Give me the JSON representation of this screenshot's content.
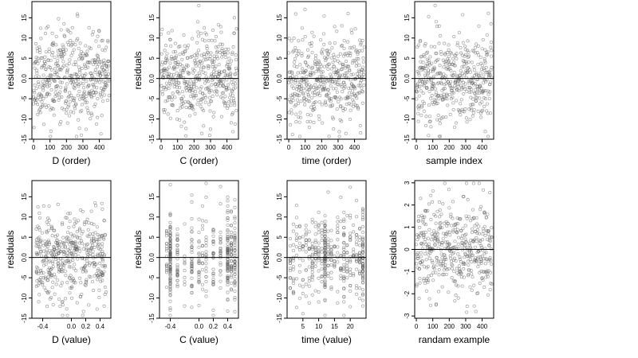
{
  "chart_data": [
    {
      "type": "scatter",
      "xlabel": "D (order)",
      "ylabel": "residuals",
      "xlim": [
        -10,
        470
      ],
      "ylim": [
        -15,
        19
      ],
      "xticks": [
        0,
        100,
        200,
        300,
        400
      ],
      "xtick_labels": [
        "0",
        "100",
        "200",
        "300",
        "400"
      ],
      "yticks": [
        -15,
        -10,
        -5,
        0,
        5,
        10,
        15
      ],
      "ytick_labels": [
        "-15",
        "-10",
        "-5",
        "0.0",
        "5",
        "10",
        "15"
      ],
      "hline": 0,
      "n_points": 460,
      "seed": 11,
      "x_kind": "index",
      "y_scale": 5.5,
      "grid": false
    },
    {
      "type": "scatter",
      "xlabel": "C (order)",
      "ylabel": "residuals",
      "xlim": [
        -10,
        470
      ],
      "ylim": [
        -15,
        19
      ],
      "xticks": [
        0,
        100,
        200,
        300,
        400
      ],
      "xtick_labels": [
        "0",
        "100",
        "200",
        "300",
        "400"
      ],
      "yticks": [
        -15,
        -10,
        -5,
        0,
        5,
        10,
        15
      ],
      "ytick_labels": [
        "-15",
        "-10",
        "-5",
        "0.0",
        "5",
        "10",
        "15"
      ],
      "hline": 0,
      "n_points": 460,
      "seed": 23,
      "x_kind": "index",
      "y_scale": 5.5,
      "grid": false
    },
    {
      "type": "scatter",
      "xlabel": "time (order)",
      "ylabel": "residuals",
      "xlim": [
        -10,
        470
      ],
      "ylim": [
        -15,
        19
      ],
      "xticks": [
        0,
        100,
        200,
        300,
        400
      ],
      "xtick_labels": [
        "0",
        "100",
        "200",
        "300",
        "400"
      ],
      "yticks": [
        -15,
        -10,
        -5,
        0,
        5,
        10,
        15
      ],
      "ytick_labels": [
        "-15",
        "-10",
        "-5",
        "0.0",
        "5",
        "10",
        "15"
      ],
      "hline": 0,
      "n_points": 460,
      "seed": 37,
      "x_kind": "index",
      "y_scale": 5.5,
      "grid": false
    },
    {
      "type": "scatter",
      "xlabel": "sample index",
      "ylabel": "residuals",
      "xlim": [
        -10,
        470
      ],
      "ylim": [
        -15,
        19
      ],
      "xticks": [
        0,
        100,
        200,
        300,
        400
      ],
      "xtick_labels": [
        "0",
        "100",
        "200",
        "300",
        "400"
      ],
      "yticks": [
        -15,
        -10,
        -5,
        0,
        5,
        10,
        15
      ],
      "ytick_labels": [
        "-15",
        "-10",
        "-5",
        "0.0",
        "5",
        "10",
        "15"
      ],
      "hline": 0,
      "n_points": 460,
      "seed": 41,
      "x_kind": "index",
      "y_scale": 5.5,
      "grid": false
    },
    {
      "type": "scatter",
      "xlabel": "D (value)",
      "ylabel": "residuals",
      "xlim": [
        -0.55,
        0.55
      ],
      "ylim": [
        -15,
        19
      ],
      "xticks": [
        -0.4,
        0,
        0.2,
        0.4
      ],
      "xtick_labels": [
        "-0.4",
        "0.0",
        "0.2",
        "0.4"
      ],
      "yticks": [
        -15,
        -10,
        -5,
        0,
        5,
        10,
        15
      ],
      "ytick_labels": [
        "-15",
        "-10",
        "-5",
        "0.0",
        "5",
        "10",
        "15"
      ],
      "hline": 0,
      "n_points": 460,
      "seed": 53,
      "x_kind": "continuous",
      "y_scale": 5.5,
      "grid": false
    },
    {
      "type": "scatter",
      "xlabel": "C (value)",
      "ylabel": "residuals",
      "xlim": [
        -0.55,
        0.55
      ],
      "ylim": [
        -15,
        19
      ],
      "xticks": [
        -0.4,
        0,
        0.2,
        0.4
      ],
      "xtick_labels": [
        "-0.4",
        "0.0",
        "0.2",
        "0.4"
      ],
      "yticks": [
        -15,
        -10,
        -5,
        0,
        5,
        10,
        15
      ],
      "ytick_labels": [
        "-15",
        "-10",
        "-5",
        "0.0",
        "5",
        "10",
        "15"
      ],
      "hline": 0,
      "n_points": 460,
      "seed": 67,
      "x_kind": "discrete",
      "x_levels": [
        -0.45,
        -0.4,
        -0.3,
        -0.2,
        -0.1,
        0,
        0.05,
        0.1,
        0.2,
        0.3,
        0.4,
        0.45,
        0.5
      ],
      "x_weights": [
        1,
        6,
        2,
        1,
        2,
        2,
        1,
        2,
        2,
        2,
        5,
        3,
        3
      ],
      "y_scale": 5.5,
      "grid": false
    },
    {
      "type": "scatter",
      "xlabel": "time (value)",
      "ylabel": "residuals",
      "xlim": [
        0,
        25
      ],
      "ylim": [
        -15,
        19
      ],
      "xticks": [
        5,
        10,
        15,
        20
      ],
      "xtick_labels": [
        "5",
        "10",
        "15",
        "20"
      ],
      "yticks": [
        -15,
        -10,
        -5,
        0,
        5,
        10,
        15
      ],
      "ytick_labels": [
        "-15",
        "-10",
        "-5",
        "0.0",
        "5",
        "10",
        "15"
      ],
      "hline": 0,
      "n_points": 460,
      "seed": 79,
      "x_kind": "discrete",
      "x_levels": [
        1,
        2,
        3,
        4,
        5,
        6,
        7,
        8,
        9,
        10,
        11,
        12,
        13,
        14,
        15,
        16,
        17,
        18,
        19,
        20,
        21,
        22,
        23,
        24
      ],
      "x_weights": [
        1,
        1,
        1,
        1,
        1,
        1,
        1,
        1,
        1,
        1,
        1,
        5,
        1,
        1,
        1,
        1,
        1,
        2,
        1,
        1,
        1,
        1,
        1,
        4
      ],
      "y_scale": 5.5,
      "grid": false
    },
    {
      "type": "scatter",
      "xlabel": "randam example",
      "ylabel": "residuals",
      "xlim": [
        -10,
        470
      ],
      "ylim": [
        -3.1,
        3.1
      ],
      "xticks": [
        0,
        100,
        200,
        300,
        400
      ],
      "xtick_labels": [
        "0",
        "100",
        "200",
        "300",
        "400"
      ],
      "yticks": [
        -3,
        -2,
        -1,
        0,
        1,
        2,
        3
      ],
      "ytick_labels": [
        "-3",
        "-2",
        "-1",
        "0",
        "1",
        "2",
        "3"
      ],
      "hline": 0,
      "n_points": 460,
      "seed": 97,
      "x_kind": "index",
      "y_scale": 1.1,
      "grid": false
    }
  ]
}
